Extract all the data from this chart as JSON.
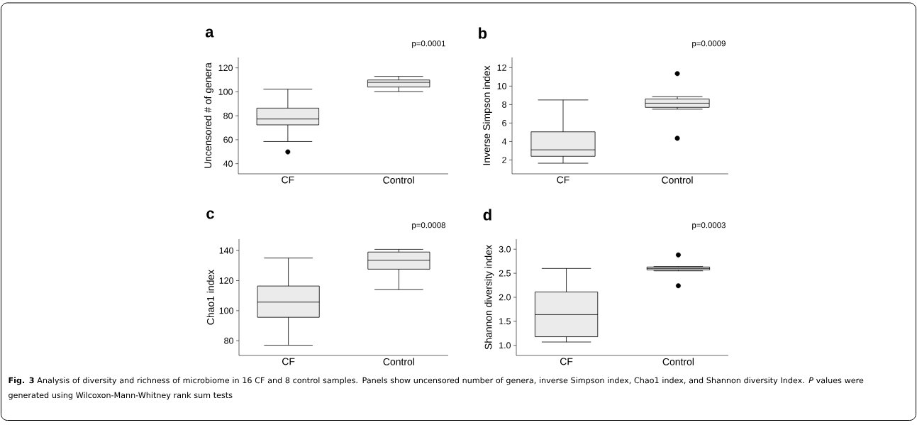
{
  "chart_data": [
    {
      "type": "box",
      "title": "a",
      "ylabel": "Uncensored # of genera",
      "categories": [
        "CF",
        "Control"
      ],
      "color": "#ebebeb",
      "ylim": [
        31.5,
        128.7
      ],
      "yticks": [
        40,
        60,
        80,
        100,
        120
      ],
      "annotations": [
        "p=0.0001"
      ],
      "boxes": [
        {
          "low": 58.5,
          "q1": 72.4,
          "median": 77.3,
          "q3": 86.4,
          "high": 102.2,
          "outliers": [
            49.8
          ]
        },
        {
          "low": 100.2,
          "q1": 104,
          "median": 107.9,
          "q3": 109.9,
          "high": 112.9
        }
      ]
    },
    {
      "type": "box",
      "title": "b",
      "ylabel": "Inverse Simpson index",
      "categories": [
        "CF",
        "Control"
      ],
      "color": "#ebebeb",
      "ylim": [
        0.5,
        13.1
      ],
      "yticks": [
        2,
        4,
        6,
        8,
        10,
        12
      ],
      "annotations": [
        "p=0.0009"
      ],
      "boxes": [
        {
          "low": 1.65,
          "q1": 2.4,
          "median": 3.1,
          "q3": 5.05,
          "high": 8.5
        },
        {
          "low": 7.5,
          "q1": 7.7,
          "median": 8.15,
          "q3": 8.6,
          "high": 8.85,
          "outliers": [
            11.35,
            4.35
          ]
        }
      ]
    },
    {
      "type": "box",
      "title": "c",
      "ylabel": "Chao1 index",
      "categories": [
        "CF",
        "Control"
      ],
      "color": "#ebebeb",
      "ylim": [
        70.2,
        147.6
      ],
      "yticks": [
        80,
        100,
        120,
        140
      ],
      "annotations": [
        "p=0.0008"
      ],
      "boxes": [
        {
          "low": 77,
          "q1": 95.6,
          "median": 105.7,
          "q3": 116.4,
          "high": 135
        },
        {
          "low": 114,
          "q1": 127.6,
          "median": 133.5,
          "q3": 139,
          "high": 140.8
        }
      ]
    },
    {
      "type": "box",
      "title": "d",
      "ylabel": "Shannon diversity index",
      "categories": [
        "CF",
        "Control"
      ],
      "color": "#ebebeb",
      "ylim": [
        0.79,
        3.21
      ],
      "yticks": [
        {
          "value": 1,
          "label": "1.0"
        },
        {
          "value": 1.5,
          "label": "1.5"
        },
        {
          "value": 2,
          "label": "2.0"
        },
        {
          "value": 2.5,
          "label": "2.5"
        },
        {
          "value": 3,
          "label": "3.0"
        }
      ],
      "annotations": [
        "p=0.0003",
        "**Fig. 3** Analysis of diversity and richness of microbiome in 16 CF and 8 control samples. Panels show uncensored number of genera, inverse Simpson index, Chao1 index, and Shannon diversity Index. *P* values were generated using Wilcoxon-Mann-Whitney rank sum tests"
      ],
      "boxes": [
        {
          "low": 1.07,
          "q1": 1.18,
          "median": 1.64,
          "q3": 2.11,
          "high": 2.6
        },
        {
          "low": 2.55,
          "q1": 2.57,
          "median": 2.6,
          "q3": 2.63,
          "high": 2.64,
          "outliers": [
            2.88,
            2.24
          ]
        }
      ]
    }
  ]
}
